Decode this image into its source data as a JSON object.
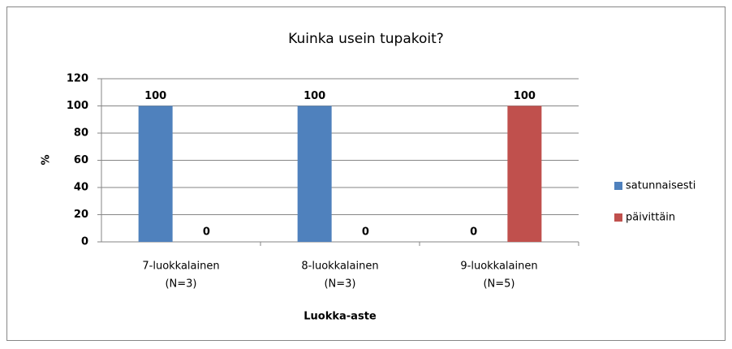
{
  "chart_data": {
    "type": "bar",
    "title": "Kuinka usein tupakoit?",
    "x_label": "Luokka-aste",
    "y_label": "%",
    "categories": [
      [
        "7-luokkalainen",
        "(N=3)"
      ],
      [
        "8-luokkalainen",
        "(N=3)"
      ],
      [
        "9-luokkalainen",
        "(N=5)"
      ]
    ],
    "series": [
      {
        "name": "satunnaisesti",
        "color": "#4f81bd",
        "values": [
          100,
          100,
          0
        ]
      },
      {
        "name": "päivittäin",
        "color": "#c0504d",
        "values": [
          0,
          0,
          100
        ]
      }
    ],
    "ylim": [
      0,
      120
    ],
    "yticks": [
      0,
      20,
      40,
      60,
      80,
      100,
      120
    ],
    "grid": true,
    "legend": "right"
  }
}
